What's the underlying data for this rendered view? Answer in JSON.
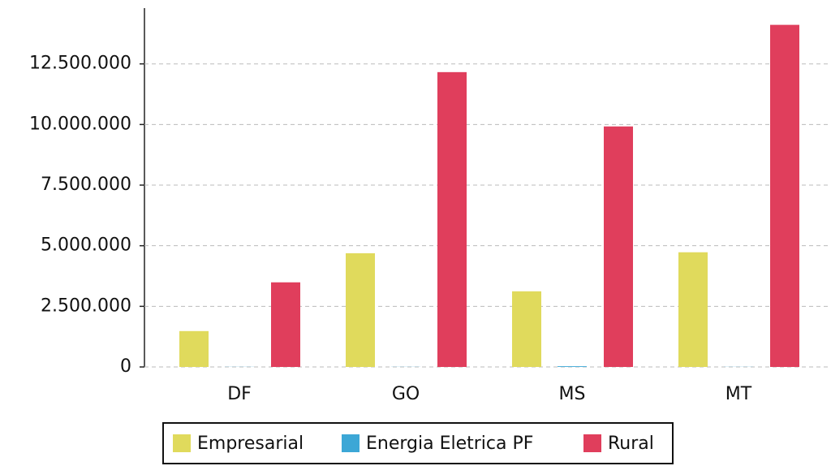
{
  "chart_data": {
    "type": "bar",
    "categories": [
      "DF",
      "GO",
      "MS",
      "MT"
    ],
    "series": [
      {
        "name": "Empresarial",
        "color": "#e0da5c",
        "values": [
          1480000,
          4690000,
          3120000,
          4730000
        ]
      },
      {
        "name": "Energia Eletrica PF",
        "color": "#3ca7d6",
        "values": [
          5000,
          5000,
          30000,
          5000
        ]
      },
      {
        "name": "Rural",
        "color": "#e03e5c",
        "values": [
          3490000,
          12160000,
          9920000,
          14110000
        ]
      }
    ],
    "ylim": [
      0,
      14800000
    ],
    "yticks": [
      0,
      {
        "value": 2500000,
        "label": "2.500.000"
      },
      {
        "value": 5000000,
        "label": "5.000.000"
      },
      {
        "value": 7500000,
        "label": "7.500.000"
      },
      {
        "value": 10000000,
        "label": "10.000.000"
      },
      {
        "value": 12500000,
        "label": "12.500.000"
      }
    ],
    "grid": true,
    "legend": "bottom"
  }
}
